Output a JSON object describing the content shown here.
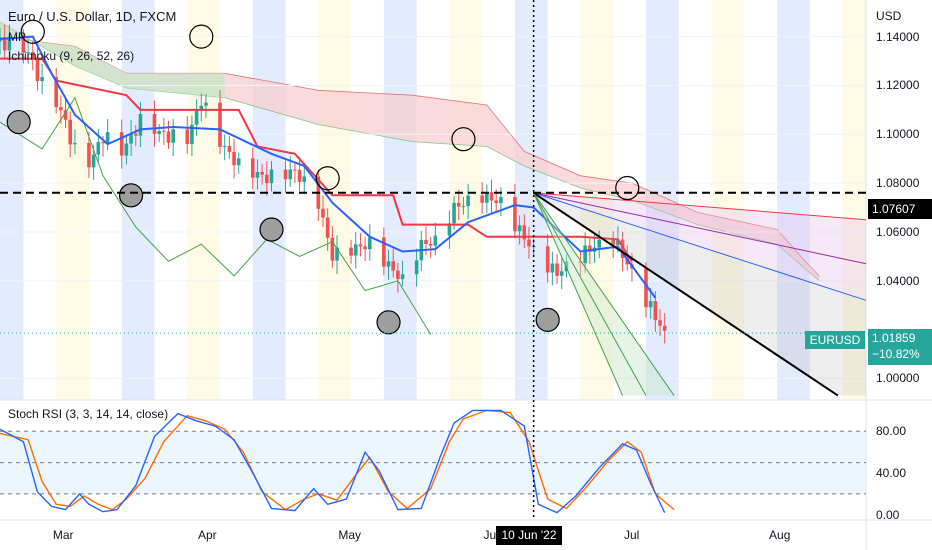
{
  "header": {
    "title": "Euro / U.S. Dollar, 1D, FXCM",
    "line2": "MP",
    "line3": "Ichimoku (9, 26, 52, 26)"
  },
  "stoch_label": "Stoch RSI (3, 3, 14, 14, close)",
  "currency": "USD",
  "price_tag": "1.07607",
  "symbol_tag": "EURUSD",
  "last_price": "1.01859",
  "last_change": "−10.82%",
  "crosshair_date": "10 Jun '22",
  "colors": {
    "bull": "#26a69a",
    "bear": "#ef5350",
    "conversion": "#2962ff",
    "base": "#f23645",
    "lagging": "#43a047",
    "kumo_red": "#f8cdd0",
    "kumo_green": "#c8e6c9",
    "stoch_k": "#2962ff",
    "stoch_d": "#ff6d00",
    "band_blue": "#e3ebff",
    "band_yellow": "#fffbe6"
  },
  "chart_data": [
    {
      "type": "candlestick",
      "title": "Euro / U.S. Dollar, 1D, FXCM",
      "y_axis": {
        "ticks": [
          "1.14000",
          "1.12000",
          "1.10000",
          "1.08000",
          "1.06000",
          "1.04000",
          "1.00000"
        ],
        "range": [
          0.992,
          1.155
        ],
        "unit": "USD"
      },
      "x_axis": {
        "ticks": [
          "Mar",
          "Apr",
          "May",
          "Jun",
          "Jul",
          "Aug"
        ],
        "range": [
          "2022-02-16",
          "2022-08-20"
        ]
      },
      "horizontal_line": 1.07607,
      "last_price": 1.01859,
      "close_path": [
        [
          "2022-02-16",
          1.138
        ],
        [
          "2022-02-22",
          1.134
        ],
        [
          "2022-02-25",
          1.12
        ],
        [
          "2022-03-01",
          1.11
        ],
        [
          "2022-03-04",
          1.093
        ],
        [
          "2022-03-07",
          1.088
        ],
        [
          "2022-03-10",
          1.099
        ],
        [
          "2022-03-14",
          1.093
        ],
        [
          "2022-03-18",
          1.105
        ],
        [
          "2022-03-24",
          1.099
        ],
        [
          "2022-03-28",
          1.098
        ],
        [
          "2022-03-31",
          1.114
        ],
        [
          "2022-04-04",
          1.097
        ],
        [
          "2022-04-08",
          1.087
        ],
        [
          "2022-04-14",
          1.082
        ],
        [
          "2022-04-20",
          1.085
        ],
        [
          "2022-04-25",
          1.072
        ],
        [
          "2022-04-28",
          1.05
        ],
        [
          "2022-05-02",
          1.053
        ],
        [
          "2022-05-06",
          1.055
        ],
        [
          "2022-05-13",
          1.04
        ],
        [
          "2022-05-17",
          1.055
        ],
        [
          "2022-05-20",
          1.056
        ],
        [
          "2022-05-24",
          1.07
        ],
        [
          "2022-05-30",
          1.075
        ],
        [
          "2022-06-03",
          1.072
        ],
        [
          "2022-06-10",
          1.052
        ],
        [
          "2022-06-15",
          1.043
        ],
        [
          "2022-06-21",
          1.052
        ],
        [
          "2022-06-27",
          1.058
        ],
        [
          "2022-06-30",
          1.047
        ],
        [
          "2022-07-05",
          1.029
        ],
        [
          "2022-07-08",
          1.018
        ]
      ],
      "ichimoku": {
        "base_line": [
          [
            "2022-02-16",
            1.131
          ],
          [
            "2022-02-25",
            1.131
          ],
          [
            "2022-02-28",
            1.122
          ],
          [
            "2022-03-15",
            1.116
          ],
          [
            "2022-03-18",
            1.11
          ],
          [
            "2022-04-08",
            1.11
          ],
          [
            "2022-04-12",
            1.095
          ],
          [
            "2022-04-20",
            1.092
          ],
          [
            "2022-04-28",
            1.075
          ],
          [
            "2022-05-11",
            1.075
          ],
          [
            "2022-05-13",
            1.063
          ],
          [
            "2022-05-27",
            1.063
          ],
          [
            "2022-05-31",
            1.058
          ],
          [
            "2022-06-20",
            1.058
          ],
          [
            "2022-06-28",
            1.057
          ],
          [
            "2022-07-01",
            1.048
          ]
        ],
        "conversion_line": [
          [
            "2022-02-16",
            1.139
          ],
          [
            "2022-02-23",
            1.14
          ],
          [
            "2022-02-27",
            1.125
          ],
          [
            "2022-03-04",
            1.108
          ],
          [
            "2022-03-11",
            1.096
          ],
          [
            "2022-03-18",
            1.102
          ],
          [
            "2022-03-25",
            1.103
          ],
          [
            "2022-04-04",
            1.102
          ],
          [
            "2022-04-15",
            1.092
          ],
          [
            "2022-04-22",
            1.087
          ],
          [
            "2022-04-28",
            1.072
          ],
          [
            "2022-05-06",
            1.058
          ],
          [
            "2022-05-13",
            1.052
          ],
          [
            "2022-05-20",
            1.053
          ],
          [
            "2022-05-27",
            1.064
          ],
          [
            "2022-06-06",
            1.071
          ],
          [
            "2022-06-10",
            1.07
          ],
          [
            "2022-06-20",
            1.052
          ],
          [
            "2022-06-28",
            1.054
          ],
          [
            "2022-07-06",
            1.033
          ]
        ],
        "lagging_span": [
          [
            "2022-02-16",
            1.105
          ],
          [
            "2022-02-25",
            1.094
          ],
          [
            "2022-03-04",
            1.115
          ],
          [
            "2022-03-10",
            1.083
          ],
          [
            "2022-03-17",
            1.062
          ],
          [
            "2022-03-24",
            1.048
          ],
          [
            "2022-03-31",
            1.055
          ],
          [
            "2022-04-07",
            1.042
          ],
          [
            "2022-04-14",
            1.057
          ],
          [
            "2022-04-21",
            1.05
          ],
          [
            "2022-04-28",
            1.056
          ],
          [
            "2022-05-05",
            1.036
          ],
          [
            "2022-05-12",
            1.04
          ],
          [
            "2022-05-19",
            1.018
          ]
        ],
        "cloud_span_a": [
          [
            "2022-02-16",
            1.14
          ],
          [
            "2022-03-04",
            1.136
          ],
          [
            "2022-03-15",
            1.125
          ],
          [
            "2022-04-05",
            1.125
          ],
          [
            "2022-04-25",
            1.118
          ],
          [
            "2022-05-15",
            1.116
          ],
          [
            "2022-05-31",
            1.112
          ],
          [
            "2022-06-08",
            1.093
          ],
          [
            "2022-06-20",
            1.083
          ],
          [
            "2022-07-01",
            1.08
          ],
          [
            "2022-07-15",
            1.068
          ],
          [
            "2022-08-01",
            1.061
          ],
          [
            "2022-08-07",
            1.048
          ],
          [
            "2022-08-10",
            1.042
          ]
        ],
        "cloud_span_b": [
          [
            "2022-02-16",
            1.146
          ],
          [
            "2022-03-04",
            1.128
          ],
          [
            "2022-03-15",
            1.119
          ],
          [
            "2022-04-05",
            1.115
          ],
          [
            "2022-04-25",
            1.104
          ],
          [
            "2022-05-15",
            1.097
          ],
          [
            "2022-05-31",
            1.095
          ],
          [
            "2022-06-08",
            1.087
          ],
          [
            "2022-06-20",
            1.078
          ],
          [
            "2022-07-01",
            1.073
          ],
          [
            "2022-07-15",
            1.063
          ],
          [
            "2022-08-01",
            1.055
          ],
          [
            "2022-08-07",
            1.045
          ],
          [
            "2022-08-10",
            1.04
          ]
        ]
      },
      "fan_origin": [
        "2022-06-10",
        1.076
      ],
      "fan_lines": [
        {
          "color": "#f23645",
          "end": [
            "2022-08-20",
            1.065
          ]
        },
        {
          "color": "#9c27b0",
          "end": [
            "2022-08-20",
            1.047
          ]
        },
        {
          "color": "#2962ff",
          "end": [
            "2022-08-20",
            1.032
          ]
        },
        {
          "color": "#000000",
          "end": [
            "2022-08-14",
            0.993
          ]
        },
        {
          "color": "#43a047",
          "end": [
            "2022-07-10",
            0.993
          ]
        },
        {
          "color": "#43a047",
          "end": [
            "2022-07-04",
            0.993
          ]
        },
        {
          "color": "#43a047",
          "end": [
            "2022-06-29",
            0.993
          ]
        }
      ],
      "markers": [
        {
          "date": "2022-02-23",
          "value": 1.142,
          "style": "hollow"
        },
        {
          "date": "2022-03-31",
          "value": 1.14,
          "style": "hollow"
        },
        {
          "date": "2022-04-27",
          "value": 1.082,
          "style": "hollow"
        },
        {
          "date": "2022-05-26",
          "value": 1.098,
          "style": "hollow"
        },
        {
          "date": "2022-06-30",
          "value": 1.078,
          "style": "hollow"
        },
        {
          "date": "2022-02-20",
          "value": 1.105,
          "style": "filled"
        },
        {
          "date": "2022-03-16",
          "value": 1.075,
          "style": "filled"
        },
        {
          "date": "2022-04-15",
          "value": 1.061,
          "style": "filled"
        },
        {
          "date": "2022-05-10",
          "value": 1.023,
          "style": "filled"
        },
        {
          "date": "2022-06-13",
          "value": 1.024,
          "style": "filled"
        }
      ]
    },
    {
      "type": "line",
      "title": "Stoch RSI (3, 3, 14, 14, close)",
      "y_axis": {
        "ticks": [
          "80.00",
          "40.00",
          "0.00"
        ],
        "range": [
          -5,
          110
        ]
      },
      "x_axis": {
        "range": [
          "2022-02-16",
          "2022-08-20"
        ]
      },
      "series": [
        {
          "key": "k",
          "points": [
            [
              "2022-02-16",
              82
            ],
            [
              "2022-02-21",
              70
            ],
            [
              "2022-02-24",
              22
            ],
            [
              "2022-02-27",
              8
            ],
            [
              "2022-03-02",
              5
            ],
            [
              "2022-03-05",
              20
            ],
            [
              "2022-03-07",
              10
            ],
            [
              "2022-03-10",
              3
            ],
            [
              "2022-03-13",
              5
            ],
            [
              "2022-03-17",
              28
            ],
            [
              "2022-03-21",
              75
            ],
            [
              "2022-03-26",
              97
            ],
            [
              "2022-03-30",
              90
            ],
            [
              "2022-04-03",
              85
            ],
            [
              "2022-04-07",
              72
            ],
            [
              "2022-04-11",
              40
            ],
            [
              "2022-04-15",
              6
            ],
            [
              "2022-04-20",
              4
            ],
            [
              "2022-04-24",
              25
            ],
            [
              "2022-04-27",
              10
            ],
            [
              "2022-05-01",
              15
            ],
            [
              "2022-05-05",
              60
            ],
            [
              "2022-05-08",
              42
            ],
            [
              "2022-05-12",
              5
            ],
            [
              "2022-05-17",
              6
            ],
            [
              "2022-05-21",
              55
            ],
            [
              "2022-05-24",
              88
            ],
            [
              "2022-05-28",
              100
            ],
            [
              "2022-06-03",
              100
            ],
            [
              "2022-06-08",
              85
            ],
            [
              "2022-06-11",
              10
            ],
            [
              "2022-06-15",
              2
            ],
            [
              "2022-06-19",
              18
            ],
            [
              "2022-06-24",
              45
            ],
            [
              "2022-06-29",
              68
            ],
            [
              "2022-07-02",
              62
            ],
            [
              "2022-07-05",
              30
            ],
            [
              "2022-07-08",
              2
            ]
          ]
        },
        {
          "key": "d",
          "points": [
            [
              "2022-02-16",
              78
            ],
            [
              "2022-02-22",
              72
            ],
            [
              "2022-02-25",
              32
            ],
            [
              "2022-02-28",
              10
            ],
            [
              "2022-03-03",
              8
            ],
            [
              "2022-03-06",
              18
            ],
            [
              "2022-03-09",
              10
            ],
            [
              "2022-03-12",
              5
            ],
            [
              "2022-03-15",
              15
            ],
            [
              "2022-03-19",
              35
            ],
            [
              "2022-03-23",
              70
            ],
            [
              "2022-03-28",
              95
            ],
            [
              "2022-04-01",
              90
            ],
            [
              "2022-04-05",
              82
            ],
            [
              "2022-04-09",
              60
            ],
            [
              "2022-04-13",
              22
            ],
            [
              "2022-04-18",
              5
            ],
            [
              "2022-04-22",
              15
            ],
            [
              "2022-04-25",
              20
            ],
            [
              "2022-04-29",
              14
            ],
            [
              "2022-05-03",
              38
            ],
            [
              "2022-05-06",
              55
            ],
            [
              "2022-05-10",
              22
            ],
            [
              "2022-05-14",
              6
            ],
            [
              "2022-05-19",
              25
            ],
            [
              "2022-05-23",
              70
            ],
            [
              "2022-05-26",
              92
            ],
            [
              "2022-05-31",
              100
            ],
            [
              "2022-06-05",
              98
            ],
            [
              "2022-06-09",
              70
            ],
            [
              "2022-06-13",
              15
            ],
            [
              "2022-06-17",
              6
            ],
            [
              "2022-06-21",
              25
            ],
            [
              "2022-06-26",
              52
            ],
            [
              "2022-06-30",
              70
            ],
            [
              "2022-07-03",
              60
            ],
            [
              "2022-07-06",
              20
            ],
            [
              "2022-07-10",
              5
            ]
          ]
        }
      ],
      "levels": [
        80,
        50,
        20
      ]
    }
  ]
}
